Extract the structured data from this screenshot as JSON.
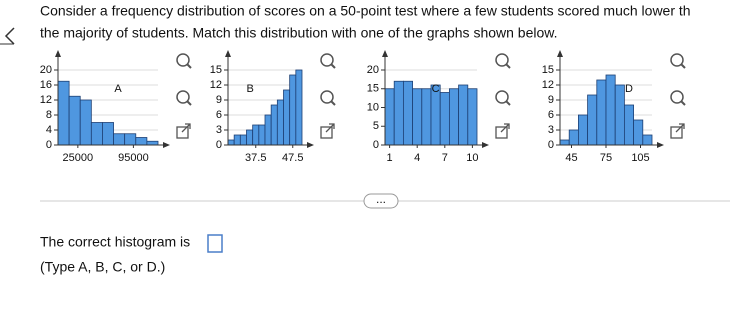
{
  "question": {
    "line1": "Consider a frequency distribution of scores on a 50-point test where a few students scored much lower th",
    "line2": "the majority of students. Match this distribution with one of the graphs shown below."
  },
  "graphs": [
    {
      "label": "A",
      "ylim": [
        0,
        20
      ],
      "yticks": [
        0,
        4,
        8,
        12,
        16,
        20
      ],
      "xlim": [
        0,
        126000
      ],
      "xticks": [
        25000,
        95000
      ],
      "values": [
        17,
        13,
        12,
        6,
        6,
        3,
        3,
        2,
        1
      ]
    },
    {
      "label": "B",
      "ylim": [
        0,
        15
      ],
      "yticks": [
        0,
        3,
        6,
        9,
        12,
        15
      ],
      "xlim": [
        30,
        50
      ],
      "xticks": [
        37.5,
        47.5
      ],
      "values": [
        1,
        2,
        2,
        3,
        4,
        4,
        6,
        8,
        9,
        11,
        14,
        15
      ]
    },
    {
      "label": "C",
      "ylim": [
        0,
        20
      ],
      "yticks": [
        0,
        5,
        10,
        15,
        20
      ],
      "xlim": [
        0.5,
        10.5
      ],
      "xticks": [
        1,
        4,
        7,
        10
      ],
      "values": [
        15,
        17,
        17,
        15,
        15,
        16,
        14,
        15,
        16,
        15
      ]
    },
    {
      "label": "D",
      "ylim": [
        0,
        15
      ],
      "yticks": [
        0,
        3,
        6,
        9,
        12,
        15
      ],
      "xlim": [
        35,
        115
      ],
      "xticks": [
        45,
        75,
        105
      ],
      "values": [
        1,
        3,
        6,
        10,
        13,
        14,
        12,
        8,
        5,
        2
      ]
    }
  ],
  "answer": {
    "prompt": "The correct histogram is",
    "hint": "(Type A, B, C, or D.)"
  },
  "divider_button": "..."
}
